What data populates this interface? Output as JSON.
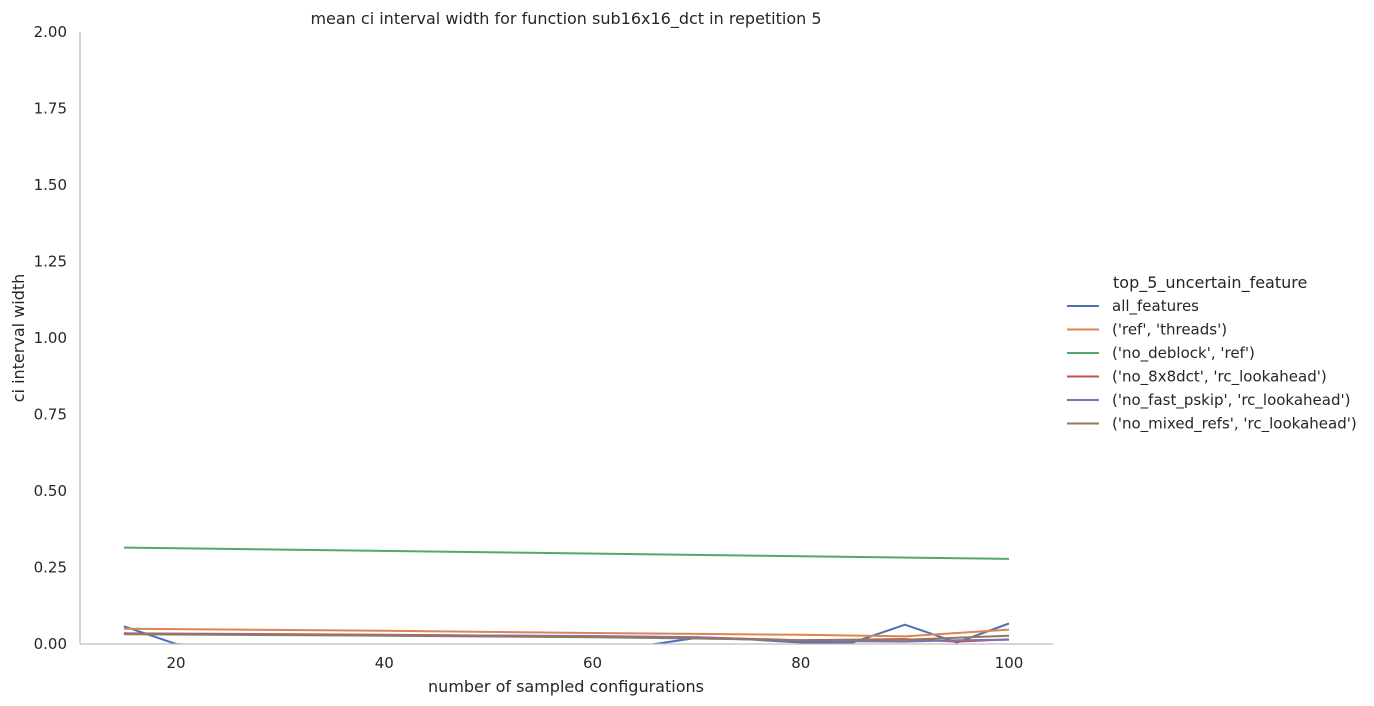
{
  "chart_data": {
    "type": "line",
    "title": "mean ci interval width for function sub16x16_dct in repetition 5",
    "xlabel": "number of sampled configurations",
    "ylabel": "ci interval width",
    "xlim": [
      11,
      105
    ],
    "ylim": [
      0,
      2.0
    ],
    "xticks": [
      20,
      40,
      60,
      80,
      100
    ],
    "yticks": [
      0.0,
      0.25,
      0.5,
      0.75,
      1.0,
      1.25,
      1.5,
      1.75,
      2.0
    ],
    "xtick_labels": [
      "20",
      "40",
      "60",
      "80",
      "100"
    ],
    "ytick_labels": [
      "0.00",
      "0.25",
      "0.50",
      "0.75",
      "1.00",
      "1.25",
      "1.50",
      "1.75",
      "2.00"
    ],
    "grid": false,
    "legend": {
      "title": "top_5_uncertain_feature",
      "placement": "right"
    },
    "series": [
      {
        "name": "all_features",
        "color": "#4c72b0",
        "x": [
          15,
          20,
          25,
          30,
          35,
          40,
          45,
          50,
          55,
          60,
          65,
          70,
          75,
          80,
          85,
          90,
          95,
          100
        ],
        "y": [
          0.058,
          0.0,
          -0.01,
          -0.015,
          -0.02,
          -0.02,
          -0.02,
          -0.015,
          -0.01,
          -0.01,
          -0.005,
          0.02,
          0.015,
          0.005,
          0.005,
          0.063,
          0.005,
          0.067
        ]
      },
      {
        "name": "('ref', 'threads')",
        "color": "#dd8452",
        "x": [
          15,
          40,
          60,
          70,
          80,
          90,
          100
        ],
        "y": [
          0.05,
          0.043,
          0.036,
          0.033,
          0.03,
          0.025,
          0.047
        ]
      },
      {
        "name": "('no_deblock', 'ref')",
        "color": "#55a868",
        "x": [
          15,
          100
        ],
        "y": [
          0.315,
          0.278
        ]
      },
      {
        "name": "('no_8x8dct', 'rc_lookahead')",
        "color": "#c44e52",
        "x": [
          15,
          40,
          60,
          70,
          80,
          90,
          95,
          100
        ],
        "y": [
          0.035,
          0.03,
          0.025,
          0.022,
          0.012,
          0.016,
          0.008,
          0.015
        ]
      },
      {
        "name": "('no_fast_pskip', 'rc_lookahead')",
        "color": "#8172b3",
        "x": [
          15,
          40,
          60,
          70,
          80,
          90,
          95,
          100
        ],
        "y": [
          0.033,
          0.029,
          0.026,
          0.022,
          0.01,
          0.008,
          0.012,
          0.014
        ]
      },
      {
        "name": "('no_mixed_refs', 'rc_lookahead')",
        "color": "#937860",
        "x": [
          15,
          40,
          60,
          70,
          80,
          90,
          100
        ],
        "y": [
          0.032,
          0.027,
          0.022,
          0.018,
          0.012,
          0.014,
          0.027
        ]
      }
    ]
  }
}
